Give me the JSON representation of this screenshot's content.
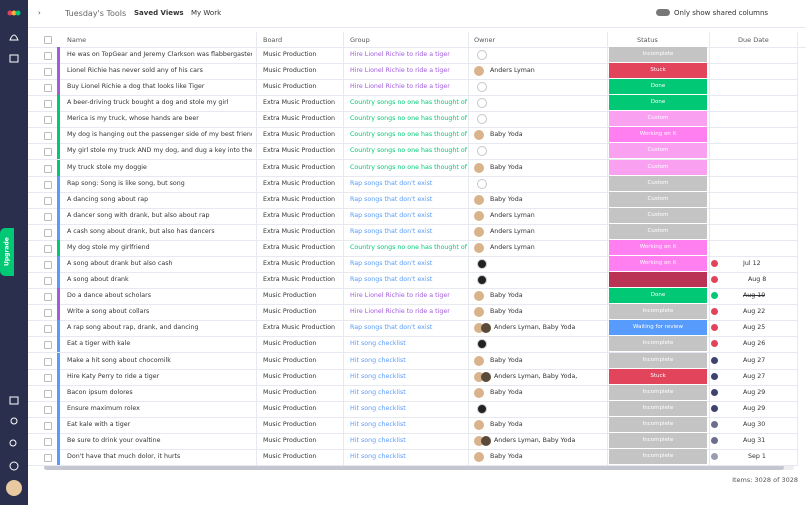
{
  "header": {
    "title": "Tuesday's Tools",
    "saved_views": "Saved Views",
    "my_work": "My Work",
    "toggle": "Only show shared columns"
  },
  "sidebar": {
    "upgrade": "Upgrade"
  },
  "columns": [
    "Name",
    "Board",
    "Group",
    "Owner",
    "Status",
    "Due Date"
  ],
  "rows": [
    {
      "name": "He was on TopGear and Jeremy Clarkson was flabbergasted",
      "board": "Music Production",
      "group": "Hire Lionel Richie to ride a tiger",
      "color": "#a25ddc",
      "status": "Incomplete",
      "status_color": "#c4c4c4"
    },
    {
      "name": "Lionel Richie has never sold any of his cars",
      "board": "Music Production",
      "group": "Hire Lionel Richie to ride a tiger",
      "color": "#a25ddc",
      "owner": "Anders Lyman",
      "status": "Stuck",
      "status_color": "#e2445c"
    },
    {
      "name": "Buy Lionel Richie a dog that looks like Tiger",
      "board": "Music Production",
      "group": "Hire Lionel Richie to ride a tiger",
      "color": "#a25ddc",
      "status": "Done",
      "status_color": "#00c875"
    },
    {
      "name": "A beer-driving truck bought a dog and stole my girl",
      "board": "Extra Music Production",
      "group": "Country songs no one has thought of",
      "color": "#00c875",
      "status": "Done",
      "status_color": "#00c875"
    },
    {
      "name": "Merica is my truck, whose hands are beer",
      "board": "Extra Music Production",
      "group": "Country songs no one has thought of",
      "color": "#00c875",
      "status": "Custom",
      "status_color": "#f9a0f0"
    },
    {
      "name": "My dog is hanging out the passenger side of my best friend's ride",
      "board": "Extra Music Production",
      "group": "Country songs no one has thought of",
      "color": "#00c875",
      "owner": "Baby Yoda",
      "status": "Working on it",
      "status_color": "#ff7ef0"
    },
    {
      "name": "My girl stole my truck AND my dog, and dug a key into the side",
      "board": "Extra Music Production",
      "group": "Country songs no one has thought of",
      "color": "#00c875",
      "status": "Custom",
      "status_color": "#f9a0f0"
    },
    {
      "name": "My truck stole my doggie",
      "board": "Extra Music Production",
      "group": "Country songs no one has thought of",
      "color": "#00c875",
      "owner": "Baby Yoda",
      "status": "Custom",
      "status_color": "#f9a0f0"
    },
    {
      "name": "Rap song: Song is like song, but song",
      "board": "Extra Music Production",
      "group": "Rap songs that don't exist",
      "color": "#579bfc",
      "status": "Custom",
      "status_color": "#c4c4c4"
    },
    {
      "name": "A dancing song about rap",
      "board": "Extra Music Production",
      "group": "Rap songs that don't exist",
      "color": "#579bfc",
      "owner": "Baby Yoda",
      "status": "Custom",
      "status_color": "#c4c4c4"
    },
    {
      "name": "A dancer song with drank, but also about rap",
      "board": "Extra Music Production",
      "group": "Rap songs that don't exist",
      "color": "#579bfc",
      "owner": "Anders Lyman",
      "status": "Custom",
      "status_color": "#c4c4c4"
    },
    {
      "name": "A cash song about drank, but also has dancers",
      "board": "Extra Music Production",
      "group": "Rap songs that don't exist",
      "color": "#579bfc",
      "owner": "Anders Lyman",
      "status": "Custom",
      "status_color": "#c4c4c4"
    },
    {
      "name": "My dog stole my girlfriend",
      "board": "Extra Music Production",
      "group": "Country songs no one has thought of",
      "color": "#00c875",
      "owner": "Anders Lyman",
      "status": "Working on it",
      "status_color": "#ff7ef0"
    },
    {
      "name": "A song about drank but also cash",
      "board": "Extra Music Production",
      "group": "Rap songs that don't exist",
      "color": "#579bfc",
      "status": "Working on it",
      "status_color": "#ff7ef0",
      "due": "Jul 12",
      "due_icon": "#e2445c"
    },
    {
      "name": "A song about drank",
      "board": "Extra Music Production",
      "group": "Rap songs that don't exist",
      "color": "#579bfc",
      "status_color": "#bb3354",
      "due": "Aug 8",
      "due_icon": "#e2445c"
    },
    {
      "name": "Do a dance about scholars",
      "board": "Music Production",
      "group": "Hire Lionel Richie to ride a tiger",
      "color": "#a25ddc",
      "owner": "Baby Yoda",
      "status": "Done",
      "status_color": "#00c875",
      "due": "Aug 19",
      "due_icon": "#00c875",
      "due_done": true
    },
    {
      "name": "Write a song about collars",
      "board": "Music Production",
      "group": "Hire Lionel Richie to ride a tiger",
      "color": "#a25ddc",
      "owner": "Baby Yoda",
      "status": "Incomplete",
      "status_color": "#c4c4c4",
      "due": "Aug 22",
      "due_icon": "#e2445c"
    },
    {
      "name": "A rap song about rap, drank, and dancing",
      "board": "Extra Music Production",
      "group": "Rap songs that don't exist",
      "color": "#579bfc",
      "owner": "Anders Lyman, Baby Yoda",
      "status": "Waiting for review",
      "status_color": "#579bfc",
      "due": "Aug 25",
      "due_icon": "#e2445c"
    },
    {
      "name": "Eat a tiger with kale",
      "board": "Music Production",
      "group": "Hit song checklist",
      "color": "#579bfc",
      "status": "Incomplete",
      "status_color": "#c4c4c4",
      "due": "Aug 26",
      "due_icon": "#e2445c"
    },
    {
      "name": "Make a hit song about chocomilk",
      "board": "Music Production",
      "group": "Hit song checklist",
      "color": "#579bfc",
      "owner": "Baby Yoda",
      "status": "Incomplete",
      "status_color": "#c4c4c4",
      "due": "Aug 27",
      "due_icon": "#3d4370"
    },
    {
      "name": "Hire Katy Perry to ride a tiger",
      "board": "Music Production",
      "group": "Hit song checklist",
      "color": "#579bfc",
      "owner": "Anders Lyman, Baby Yoda,",
      "status": "Stuck",
      "status_color": "#e2445c",
      "due": "Aug 27",
      "due_icon": "#3d4370"
    },
    {
      "name": "Bacon ipsum dolores",
      "board": "Music Production",
      "group": "Hit song checklist",
      "color": "#579bfc",
      "owner": "Baby Yoda",
      "status": "Incomplete",
      "status_color": "#c4c4c4",
      "due": "Aug 29",
      "due_icon": "#3d4370"
    },
    {
      "name": "Ensure maximum rolex",
      "board": "Music Production",
      "group": "Hit song checklist",
      "color": "#579bfc",
      "status": "Incomplete",
      "status_color": "#c4c4c4",
      "due": "Aug 29",
      "due_icon": "#3d4370"
    },
    {
      "name": "Eat kale with a tiger",
      "board": "Music Production",
      "group": "Hit song checklist",
      "color": "#579bfc",
      "owner": "Baby Yoda",
      "status": "Incomplete",
      "status_color": "#c4c4c4",
      "due": "Aug 30",
      "due_icon": "#6c6f8a"
    },
    {
      "name": "Be sure to drink your ovaltine",
      "board": "Music Production",
      "group": "Hit song checklist",
      "color": "#579bfc",
      "owner": "Anders Lyman, Baby Yoda",
      "status": "Incomplete",
      "status_color": "#c4c4c4",
      "due": "Aug 31",
      "due_icon": "#6c6f8a"
    },
    {
      "name": "Don't have that much dolor, it hurts",
      "board": "Music Production",
      "group": "Hit song checklist",
      "color": "#579bfc",
      "owner": "Baby Yoda",
      "status": "Incomplete",
      "status_color": "#c4c4c4",
      "due": "Sep 1",
      "due_icon": "#9a9db0"
    }
  ],
  "footer": "Items: 3028 of 3028"
}
